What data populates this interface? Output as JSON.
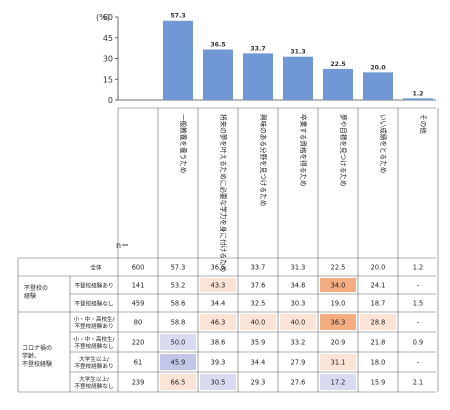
{
  "chart_data": {
    "type": "bar",
    "unit_label": "(%)",
    "n_header": "n＝",
    "ylim": [
      0,
      60
    ],
    "yticks": [
      "60",
      "45",
      "30",
      "15",
      "0"
    ],
    "categories": [
      "一般教養を養うため",
      "将来の夢を叶えるために必要な学力を身に付けるため",
      "興味のある分野を見つけるため",
      "卒業する資格を得るため",
      "夢や目標を見つけるため",
      "いい成績をとるため",
      "その他"
    ],
    "values": [
      57.3,
      36.5,
      33.7,
      31.3,
      22.5,
      20.0,
      1.2
    ],
    "value_labels": [
      "57.3",
      "36.5",
      "33.7",
      "31.3",
      "22.5",
      "20.0",
      "1.2"
    ],
    "bar_color": "#6f98d4",
    "table": {
      "rows": [
        {
          "group": "",
          "label": "全体",
          "n": "600",
          "cells": [
            "57.3",
            "36.5",
            "33.7",
            "31.3",
            "22.5",
            "20.0",
            "1.2"
          ]
        },
        {
          "group": "不登校の経験",
          "label": "不登校経験あり",
          "n": "141",
          "cells": [
            "53.2",
            "43.3",
            "37.6",
            "34.8",
            "34.0",
            "24.1",
            "-"
          ]
        },
        {
          "group": "",
          "label": "不登校経験なし",
          "n": "459",
          "cells": [
            "58.6",
            "34.4",
            "32.5",
            "30.3",
            "19.0",
            "18.7",
            "1.5"
          ]
        },
        {
          "group": "コロナ禍の学齢、不登校経験",
          "label": "小・中・高校生/不登校経験あり",
          "n": "80",
          "cells": [
            "58.8",
            "46.3",
            "40.0",
            "40.0",
            "36.3",
            "28.8",
            "-"
          ]
        },
        {
          "group": "",
          "label": "小・中・高校生/不登校経験なし",
          "n": "220",
          "cells": [
            "50.0",
            "38.6",
            "35.9",
            "33.2",
            "20.9",
            "21.8",
            "0.9"
          ]
        },
        {
          "group": "",
          "label": "大学生以上/不登校経験あり",
          "n": "61",
          "cells": [
            "45.9",
            "39.3",
            "34.4",
            "27.9",
            "31.1",
            "18.0",
            "-"
          ]
        },
        {
          "group": "",
          "label": "大学生以上/不登校経験なし",
          "n": "239",
          "cells": [
            "66.5",
            "30.5",
            "29.3",
            "27.6",
            "17.2",
            "15.9",
            "2.1"
          ]
        }
      ],
      "highlights": [
        {
          "row": 1,
          "col": 1,
          "color": "#fbe3d6"
        },
        {
          "row": 1,
          "col": 4,
          "color": "#f3ad80"
        },
        {
          "row": 3,
          "col": 1,
          "color": "#fbe3d6"
        },
        {
          "row": 3,
          "col": 2,
          "color": "#fbe3d6"
        },
        {
          "row": 3,
          "col": 3,
          "color": "#fbe3d6"
        },
        {
          "row": 3,
          "col": 4,
          "color": "#f3ad80"
        },
        {
          "row": 3,
          "col": 5,
          "color": "#fbe3d6"
        },
        {
          "row": 4,
          "col": 0,
          "color": "#d9dcf1"
        },
        {
          "row": 5,
          "col": 0,
          "color": "#c2c7ea"
        },
        {
          "row": 5,
          "col": 4,
          "color": "#fbe3d6"
        },
        {
          "row": 6,
          "col": 0,
          "color": "#fbe3d6"
        },
        {
          "row": 6,
          "col": 1,
          "color": "#d9dcf1"
        },
        {
          "row": 6,
          "col": 4,
          "color": "#d9dcf1"
        }
      ]
    }
  }
}
